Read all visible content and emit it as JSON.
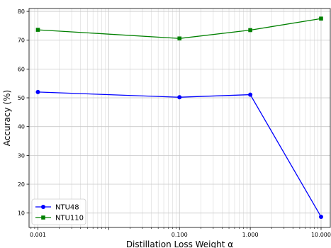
{
  "chart_data": {
    "type": "line",
    "xscale": "log",
    "xlim": [
      0.00075,
      13.5
    ],
    "ylim": [
      5,
      81
    ],
    "grid": true,
    "xlabel": "Distillation Loss Weight α",
    "ylabel": "Accuracy (%)",
    "x": [
      0.001,
      0.1,
      1,
      10
    ],
    "x_tick_labels": [
      "0.001",
      "0.100",
      "1.000",
      "10.000"
    ],
    "y_ticks": [
      10,
      20,
      30,
      40,
      50,
      60,
      70,
      80
    ],
    "legend_position": "lower left",
    "series": [
      {
        "name": "NTU48",
        "values": [
          52.0,
          50.2,
          51.1,
          8.7
        ],
        "color": "#0000ff",
        "marker": "circle"
      },
      {
        "name": "NTU110",
        "values": [
          73.6,
          70.6,
          73.5,
          77.5
        ],
        "color": "#008000",
        "marker": "square"
      }
    ]
  }
}
